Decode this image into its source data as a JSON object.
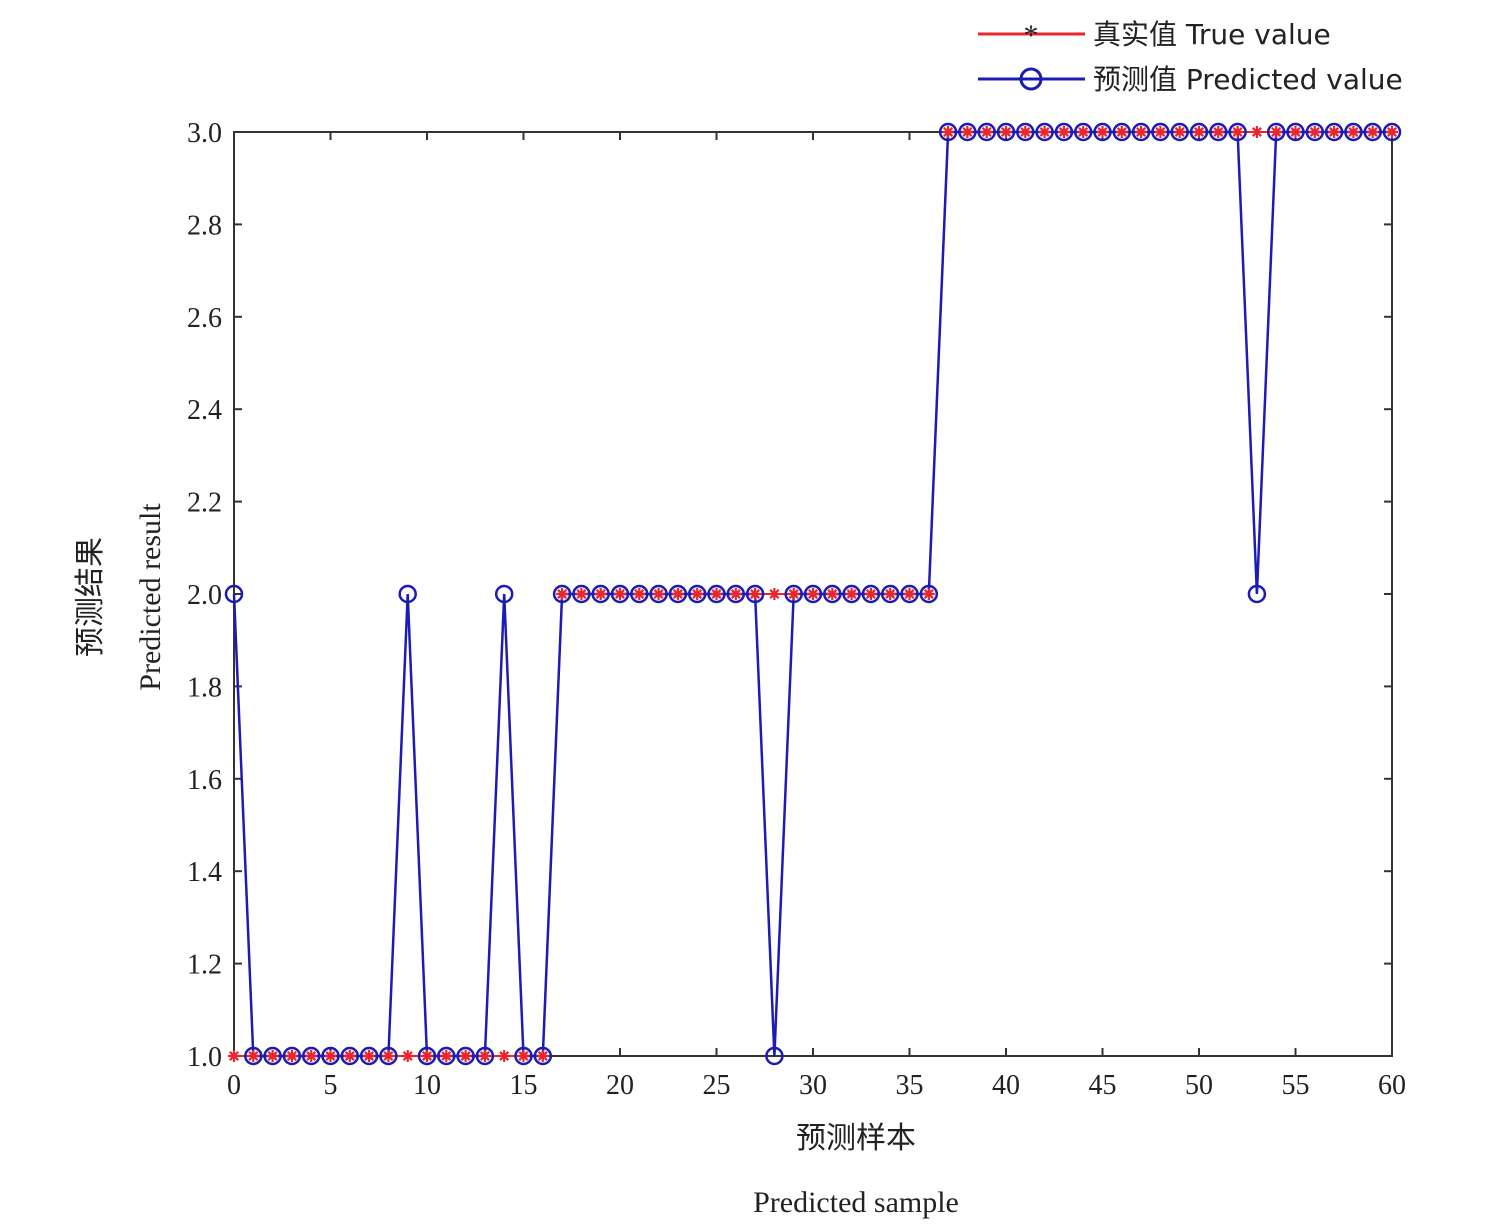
{
  "chart_data": {
    "type": "line",
    "xlabel_cn": "预测样本",
    "xlabel_en": "Predicted sample",
    "ylabel_cn": "预测结果",
    "ylabel_en": "Predicted result",
    "xlim": [
      0,
      60
    ],
    "ylim": [
      1.0,
      3.0
    ],
    "x_ticks": [
      0,
      5,
      10,
      15,
      20,
      25,
      30,
      35,
      40,
      45,
      50,
      55,
      60
    ],
    "y_ticks": [
      1.0,
      1.2,
      1.4,
      1.6,
      1.8,
      2.0,
      2.2,
      2.4,
      2.6,
      2.8,
      3.0
    ],
    "y_tick_labels": [
      "1.0",
      "1.2",
      "1.4",
      "1.6",
      "1.8",
      "2.0",
      "2.2",
      "2.4",
      "2.6",
      "2.8",
      "3.0"
    ],
    "grid": false,
    "legend_position": "top-right",
    "x": [
      0,
      1,
      2,
      3,
      4,
      5,
      6,
      7,
      8,
      9,
      10,
      11,
      12,
      13,
      14,
      15,
      16,
      17,
      18,
      19,
      20,
      21,
      22,
      23,
      24,
      25,
      26,
      27,
      28,
      29,
      30,
      31,
      32,
      33,
      34,
      35,
      36,
      37,
      38,
      39,
      40,
      41,
      42,
      43,
      44,
      45,
      46,
      47,
      48,
      49,
      50,
      51,
      52,
      53,
      54,
      55,
      56,
      57,
      58,
      59,
      60
    ],
    "series": [
      {
        "name": "真实值 True value",
        "marker": "asterisk",
        "color": "#e8262e",
        "values": [
          1,
          1,
          1,
          1,
          1,
          1,
          1,
          1,
          1,
          1,
          1,
          1,
          1,
          1,
          1,
          1,
          1,
          2,
          2,
          2,
          2,
          2,
          2,
          2,
          2,
          2,
          2,
          2,
          2,
          2,
          2,
          2,
          2,
          2,
          2,
          2,
          2,
          3,
          3,
          3,
          3,
          3,
          3,
          3,
          3,
          3,
          3,
          3,
          3,
          3,
          3,
          3,
          3,
          3,
          3,
          3,
          3,
          3,
          3,
          3,
          3
        ]
      },
      {
        "name": "预测值 Predicted value",
        "marker": "circle",
        "color": "#1c1cb4",
        "values": [
          2,
          1,
          1,
          1,
          1,
          1,
          1,
          1,
          1,
          2,
          1,
          1,
          1,
          1,
          2,
          1,
          1,
          2,
          2,
          2,
          2,
          2,
          2,
          2,
          2,
          2,
          2,
          2,
          1,
          2,
          2,
          2,
          2,
          2,
          2,
          2,
          2,
          3,
          3,
          3,
          3,
          3,
          3,
          3,
          3,
          3,
          3,
          3,
          3,
          3,
          3,
          3,
          3,
          2,
          3,
          3,
          3,
          3,
          3,
          3,
          3
        ]
      }
    ]
  }
}
